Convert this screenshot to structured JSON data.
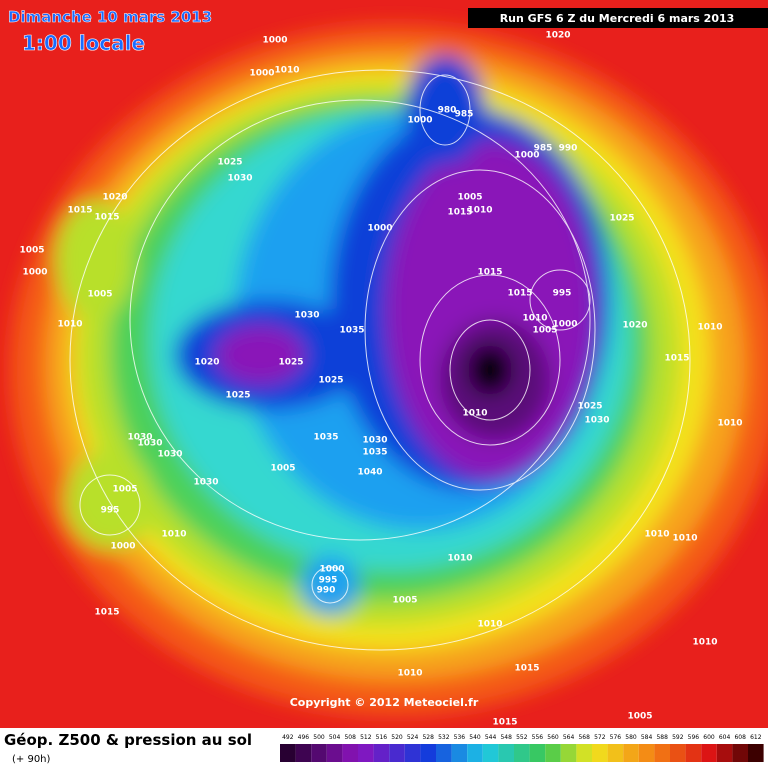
{
  "header": {
    "date": "Dimanche 10 mars 2013",
    "time": "1:00 locale",
    "run": "Run GFS 6 Z du Mercredi 6 mars 2013"
  },
  "map": {
    "copyright": "Copyright © 2012 Meteociel.fr",
    "isobar_labels": [
      1000,
      1000,
      1010,
      1020,
      980,
      985,
      1000,
      1000,
      985,
      990,
      1025,
      1030,
      1020,
      1015,
      1015,
      1005,
      1015,
      1010,
      1000,
      1025,
      1005,
      1000,
      1015,
      1015,
      995,
      1005,
      1010,
      1005,
      1000,
      1030,
      1035,
      1020,
      1010,
      1010,
      1020,
      1025,
      1015,
      1025,
      1025,
      1010,
      1025,
      1030,
      1010,
      1030,
      1030,
      1030,
      1035,
      1030,
      1035,
      1040,
      1005,
      1030,
      1005,
      995,
      1010,
      1000,
      1010,
      1010,
      1010,
      1000,
      995,
      990,
      1005,
      1015,
      1010,
      1015,
      1010,
      1010,
      1005,
      1015
    ]
  },
  "footer": {
    "title": "Géop. Z500 & pression au sol",
    "lead": "(+ 90h)",
    "colorbar": [
      492,
      496,
      500,
      504,
      508,
      512,
      516,
      520,
      524,
      528,
      532,
      536,
      540,
      544,
      548,
      552,
      556,
      560,
      564,
      568,
      572,
      576,
      580,
      584,
      588,
      592,
      596,
      600,
      604,
      608,
      612
    ]
  }
}
